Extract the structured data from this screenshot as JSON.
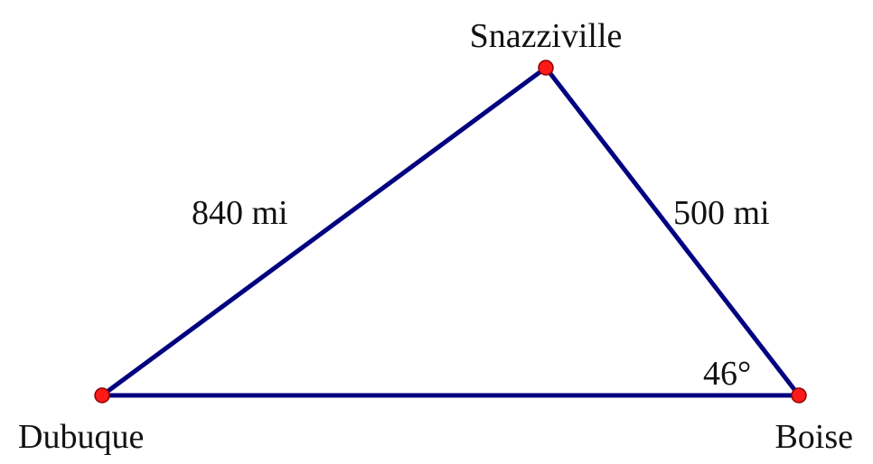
{
  "colors": {
    "edge": "#000080",
    "vertex": "#ff1a1a"
  },
  "vertices": {
    "top": {
      "name": "Snazziville"
    },
    "left": {
      "name": "Dubuque"
    },
    "right": {
      "name": "Boise"
    }
  },
  "edges": {
    "left_side": {
      "label": "840 mi"
    },
    "right_side": {
      "label": "500 mi"
    },
    "base": {
      "label": ""
    }
  },
  "angles": {
    "right_vertex": {
      "label": "46°"
    }
  }
}
